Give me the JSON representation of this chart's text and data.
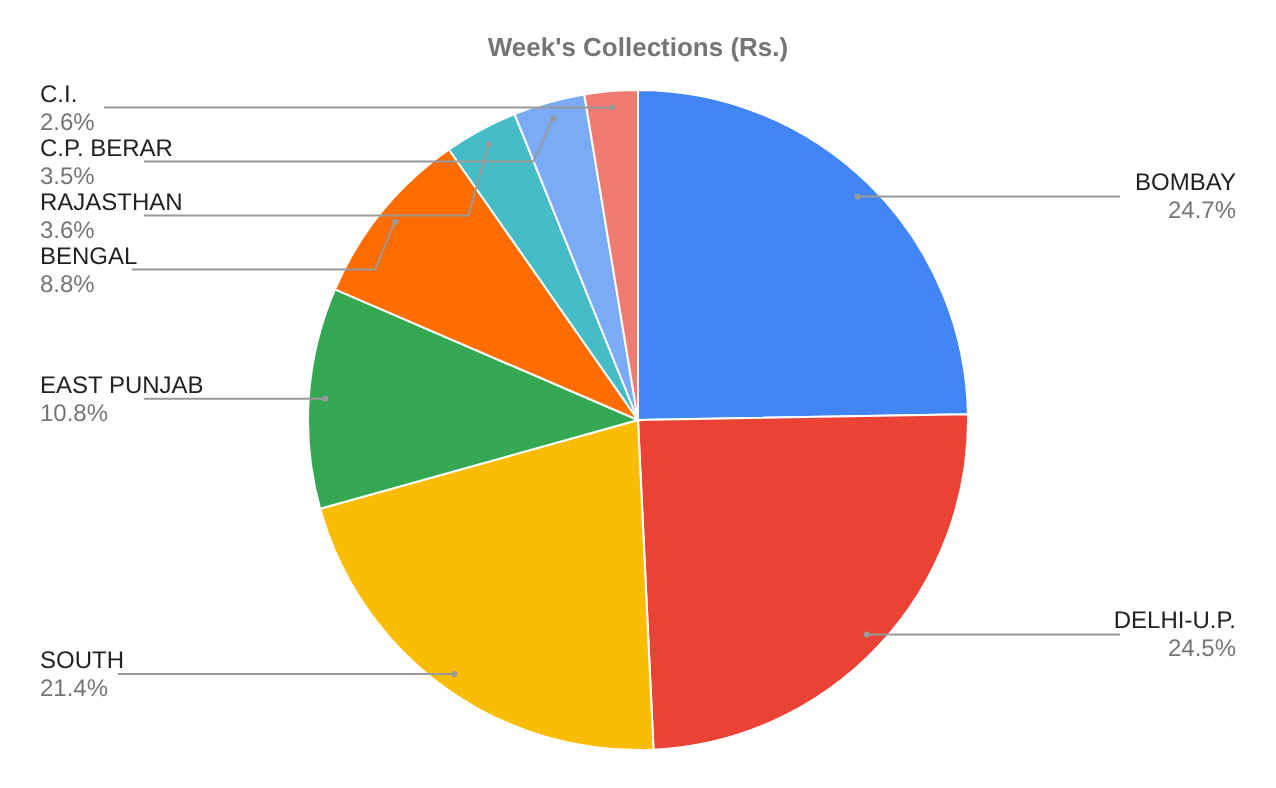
{
  "chart_data": {
    "type": "pie",
    "title": "Week's Collections (Rs.)",
    "categories": [
      "BOMBAY",
      "DELHI-U.P.",
      "SOUTH",
      "EAST PUNJAB",
      "BENGAL",
      "RAJASTHAN",
      "C.P. BERAR",
      "C.I."
    ],
    "values": [
      24.7,
      24.5,
      21.4,
      10.8,
      8.8,
      3.6,
      3.5,
      2.6
    ],
    "colors": [
      "#4285f4",
      "#ea4335",
      "#fbbc04",
      "#34a853",
      "#ff6d01",
      "#46bdc6",
      "#7baaf7",
      "#f07b72"
    ],
    "value_labels": [
      "24.7%",
      "24.5%",
      "21.4%",
      "10.8%",
      "8.8%",
      "3.6%",
      "3.5%",
      "2.6%"
    ]
  }
}
